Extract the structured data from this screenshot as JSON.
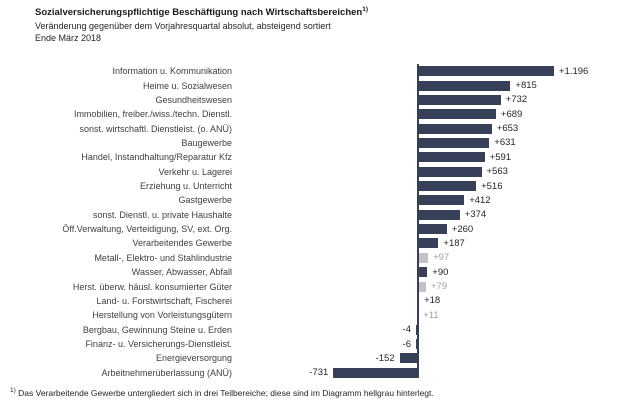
{
  "chart_data": {
    "type": "bar",
    "orientation": "horizontal",
    "title": "Sozialversicherungspflichtige Beschäftigung nach Wirtschaftsbereichen",
    "title_superscript": "1)",
    "subtitle": "Veränderung gegenüber dem Vorjahresquartal absolut, absteigend sortiert",
    "period": "Ende März 2018",
    "baseline": 0,
    "xlim": [
      -731,
      1196
    ],
    "sorted": "descending",
    "categories": [
      "Information u. Kommunikation",
      "Heime u. Sozialwesen",
      "Gesundheitswesen",
      "Immobilien, freiber./wiss./techn. Dienstl.",
      "sonst. wirtschaftl. Dienstleist. (o. ANÜ)",
      "Baugewerbe",
      "Handel, Instandhaltung/Reparatur Kfz",
      "Verkehr u. Lagerei",
      "Erziehung u. Unterricht",
      "Gastgewerbe",
      "sonst. Dienstl. u. private Haushalte",
      "Öff.Verwaltung, Verteidigung, SV, ext. Org.",
      "Verarbeitendes Gewerbe",
      "Metall-, Elektro- und Stahlindustrie",
      "Wasser, Abwasser, Abfall",
      "Herst. überw. häusl. konsumierter Güter",
      "Land- u. Forstwirtschaft, Fischerei",
      "Herstellung von Vorleistungsgütern",
      "Bergbau, Gewinnung Steine u. Erden",
      "Finanz- u. Versicherungs-Dienstleist.",
      "Energieversorgung",
      "Arbeitnehmerüberlassung (ANÜ)"
    ],
    "values": [
      1196,
      815,
      732,
      689,
      653,
      631,
      591,
      563,
      516,
      412,
      374,
      260,
      187,
      97,
      90,
      79,
      18,
      11,
      -4,
      -6,
      -152,
      -731
    ],
    "value_labels": [
      "+1.196",
      "+815",
      "+732",
      "+689",
      "+653",
      "+631",
      "+591",
      "+563",
      "+516",
      "+412",
      "+374",
      "+260",
      "+187",
      "+97",
      "+90",
      "+79",
      "+18",
      "+11",
      "-4",
      "-6",
      "-152",
      "-731"
    ],
    "highlighted_indices": [
      13,
      15,
      17
    ],
    "highlighted_categories": [
      "Metall-, Elektro- und Stahlindustrie",
      "Herst. überw. häusl. konsumierter Güter",
      "Herstellung von Vorleistungsgütern"
    ]
  },
  "footnote": {
    "superscript": "1)",
    "text": " Das Verarbeitende Gewerbe untergliedert sich in drei Teilbereiche; diese sind im Diagramm hellgrau hinterlegt."
  },
  "colors": {
    "bar_dark": "#374059",
    "bar_highlight": "#c2c2c2",
    "value_dark": "#262626",
    "value_highlight": "#9e9e9e",
    "axis": "#374059",
    "label_text": "#404040"
  }
}
